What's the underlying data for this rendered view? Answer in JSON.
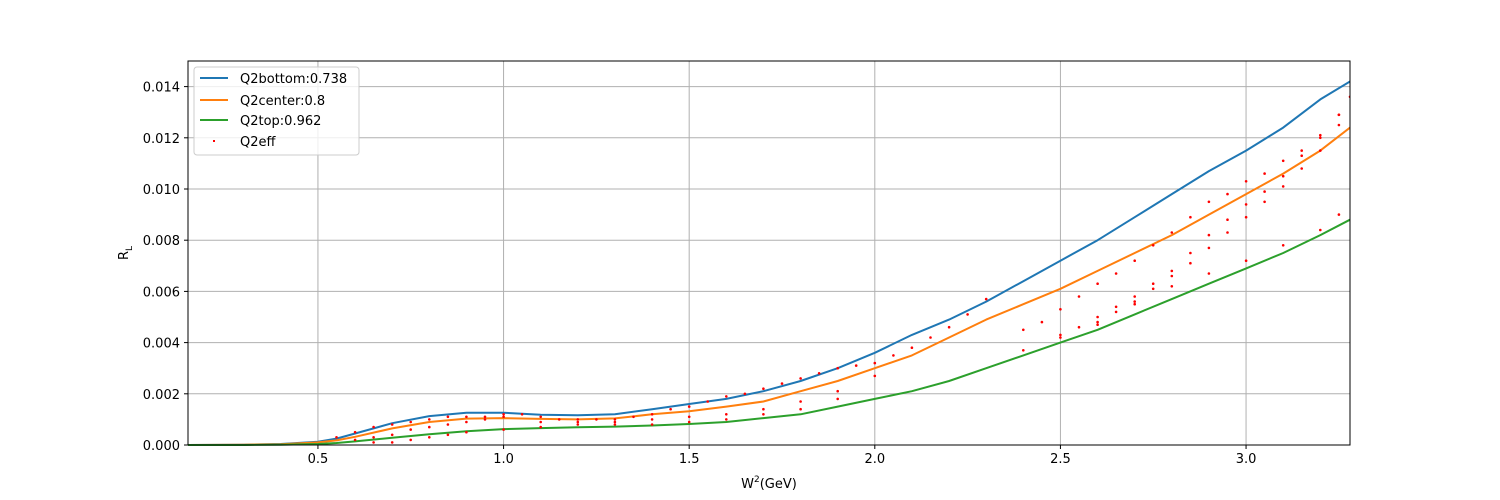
{
  "chart_data": {
    "type": "line",
    "xlabel": "W",
    "xlabel_sup": "2",
    "xlabel_unit": "(GeV)",
    "ylabel": "R",
    "ylabel_sub": "L",
    "xlim": [
      0.15,
      3.28
    ],
    "ylim": [
      0.0,
      0.015
    ],
    "grid": true,
    "legend_position": "upper-left",
    "xticks": [
      "0.5",
      "1.0",
      "1.5",
      "2.0",
      "2.5",
      "3.0"
    ],
    "xtick_values": [
      0.5,
      1.0,
      1.5,
      2.0,
      2.5,
      3.0
    ],
    "yticks": [
      "0.000",
      "0.002",
      "0.004",
      "0.006",
      "0.008",
      "0.010",
      "0.012",
      "0.014"
    ],
    "ytick_values": [
      0.0,
      0.002,
      0.004,
      0.006,
      0.008,
      0.01,
      0.012,
      0.014
    ],
    "series": [
      {
        "name": "Q2bottom:0.738",
        "color": "#1f77b4",
        "kind": "line",
        "x": [
          0.15,
          0.3,
          0.4,
          0.5,
          0.55,
          0.6,
          0.7,
          0.8,
          0.9,
          1.0,
          1.1,
          1.2,
          1.3,
          1.4,
          1.5,
          1.6,
          1.7,
          1.8,
          1.9,
          2.0,
          2.1,
          2.2,
          2.3,
          2.4,
          2.5,
          2.6,
          2.7,
          2.8,
          2.9,
          3.0,
          3.1,
          3.2,
          3.28
        ],
        "y": [
          0.0,
          1e-05,
          4e-05,
          0.00013,
          0.00025,
          0.00045,
          0.00085,
          0.00113,
          0.00126,
          0.00126,
          0.00118,
          0.00116,
          0.0012,
          0.0014,
          0.0016,
          0.0018,
          0.0021,
          0.0025,
          0.003,
          0.0036,
          0.0043,
          0.0049,
          0.0056,
          0.0064,
          0.0072,
          0.008,
          0.0089,
          0.0098,
          0.0107,
          0.0115,
          0.0124,
          0.0135,
          0.0142
        ]
      },
      {
        "name": "Q2center:0.8",
        "color": "#ff7f0e",
        "kind": "line",
        "x": [
          0.15,
          0.3,
          0.4,
          0.5,
          0.55,
          0.6,
          0.7,
          0.8,
          0.9,
          1.0,
          1.1,
          1.2,
          1.3,
          1.4,
          1.5,
          1.6,
          1.7,
          1.8,
          1.9,
          2.0,
          2.1,
          2.2,
          2.3,
          2.4,
          2.5,
          2.6,
          2.7,
          2.8,
          2.9,
          3.0,
          3.1,
          3.2,
          3.28
        ],
        "y": [
          0.0,
          1e-05,
          3e-05,
          0.0001,
          0.00018,
          0.00032,
          0.00065,
          0.0009,
          0.00103,
          0.00105,
          0.00102,
          0.001,
          0.00104,
          0.0012,
          0.00132,
          0.0015,
          0.0017,
          0.0021,
          0.0025,
          0.003,
          0.0035,
          0.0042,
          0.0049,
          0.0055,
          0.0061,
          0.0068,
          0.0075,
          0.0082,
          0.009,
          0.0098,
          0.0106,
          0.0115,
          0.0124
        ]
      },
      {
        "name": "Q2top:0.962",
        "color": "#2ca02c",
        "kind": "line",
        "x": [
          0.15,
          0.3,
          0.4,
          0.5,
          0.55,
          0.6,
          0.7,
          0.8,
          0.9,
          1.0,
          1.1,
          1.2,
          1.3,
          1.4,
          1.5,
          1.6,
          1.7,
          1.8,
          1.9,
          2.0,
          2.1,
          2.2,
          2.3,
          2.4,
          2.5,
          2.6,
          2.7,
          2.8,
          2.9,
          3.0,
          3.1,
          3.2,
          3.28
        ],
        "y": [
          0.0,
          0.0,
          1e-05,
          4e-05,
          8e-05,
          0.00014,
          0.00028,
          0.00042,
          0.00054,
          0.00062,
          0.00066,
          0.00069,
          0.00072,
          0.00076,
          0.00082,
          0.0009,
          0.00105,
          0.0012,
          0.0015,
          0.0018,
          0.0021,
          0.0025,
          0.003,
          0.0035,
          0.004,
          0.0045,
          0.0051,
          0.0057,
          0.0063,
          0.0069,
          0.0075,
          0.0082,
          0.0088
        ]
      },
      {
        "name": "Q2eff",
        "color": "#ff0000",
        "kind": "scatter",
        "x": [
          0.55,
          0.6,
          0.65,
          0.7,
          0.75,
          0.8,
          0.85,
          0.9,
          0.95,
          1.0,
          1.05,
          1.1,
          1.15,
          1.2,
          1.25,
          1.3,
          1.35,
          1.4,
          1.45,
          1.5,
          1.55,
          1.6,
          1.65,
          1.7,
          1.75,
          1.8,
          1.85,
          1.9,
          1.95,
          2.0,
          2.05,
          2.1,
          2.15,
          2.2,
          2.25,
          2.3,
          0.6,
          0.65,
          0.7,
          0.75,
          0.8,
          0.85,
          0.9,
          0.95,
          1.0,
          1.1,
          1.2,
          1.3,
          1.4,
          1.5,
          1.6,
          1.7,
          1.8,
          1.9,
          2.0,
          0.65,
          0.7,
          0.75,
          0.8,
          0.85,
          0.9,
          1.0,
          1.1,
          1.2,
          1.3,
          1.4,
          1.5,
          1.6,
          1.7,
          1.8,
          1.9,
          2.4,
          2.45,
          2.5,
          2.55,
          2.6,
          2.65,
          2.7,
          2.75,
          2.8,
          2.85,
          2.9,
          2.95,
          3.0,
          3.05,
          3.1,
          3.15,
          3.2,
          3.25,
          2.5,
          2.55,
          2.6,
          2.65,
          2.7,
          2.75,
          2.8,
          2.85,
          2.9,
          2.95,
          3.0,
          3.05,
          3.1,
          3.15,
          3.2,
          3.25,
          2.6,
          2.65,
          2.7,
          2.75,
          2.8,
          2.85,
          2.9,
          2.95,
          3.0,
          3.05,
          3.1,
          3.15,
          3.2,
          3.25,
          2.4,
          2.5,
          2.6,
          2.7,
          2.8,
          2.9,
          3.0,
          3.1,
          3.2,
          3.25,
          3.28
        ],
        "y": [
          0.0003,
          0.0005,
          0.0007,
          0.0008,
          0.0009,
          0.001,
          0.0011,
          0.0011,
          0.0011,
          0.0012,
          0.0012,
          0.0011,
          0.001,
          0.001,
          0.001,
          0.001,
          0.0011,
          0.0012,
          0.0014,
          0.0015,
          0.0017,
          0.0019,
          0.002,
          0.0022,
          0.0024,
          0.0026,
          0.0028,
          0.003,
          0.0031,
          0.0032,
          0.0035,
          0.0038,
          0.0042,
          0.0046,
          0.0051,
          0.0057,
          0.0002,
          0.0003,
          0.0004,
          0.0006,
          0.0007,
          0.0008,
          0.0009,
          0.001,
          0.0011,
          0.0009,
          0.0009,
          0.0009,
          0.001,
          0.0011,
          0.0012,
          0.0014,
          0.0017,
          0.0021,
          0.0027,
          0.0001,
          0.0001,
          0.0002,
          0.0003,
          0.0004,
          0.0005,
          0.0006,
          0.0007,
          0.0008,
          0.0008,
          0.0008,
          0.0009,
          0.001,
          0.0012,
          0.0014,
          0.0018,
          0.0045,
          0.0048,
          0.0053,
          0.0058,
          0.0063,
          0.0067,
          0.0072,
          0.0078,
          0.0083,
          0.0089,
          0.0095,
          0.0098,
          0.0103,
          0.0106,
          0.0111,
          0.0115,
          0.0121,
          0.0129,
          0.0043,
          0.0046,
          0.005,
          0.0054,
          0.0058,
          0.0063,
          0.0068,
          0.0075,
          0.0082,
          0.0088,
          0.0094,
          0.0099,
          0.0105,
          0.0113,
          0.012,
          0.0129,
          0.0048,
          0.0052,
          0.0056,
          0.0061,
          0.0066,
          0.0071,
          0.0077,
          0.0083,
          0.0089,
          0.0095,
          0.0101,
          0.0108,
          0.0115,
          0.0125,
          0.0037,
          0.0042,
          0.0047,
          0.0055,
          0.0062,
          0.0067,
          0.0072,
          0.0078,
          0.0084,
          0.009,
          0.0136
        ]
      }
    ]
  }
}
